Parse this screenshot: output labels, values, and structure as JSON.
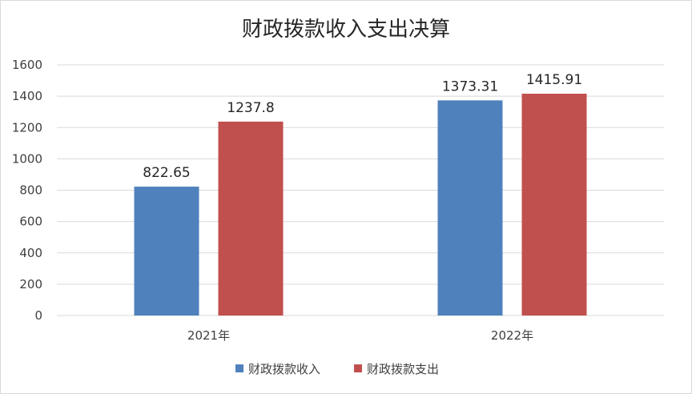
{
  "chart_data": {
    "type": "bar",
    "title": "财政拨款收入支出决算",
    "categories": [
      "2021年",
      "2022年"
    ],
    "series": [
      {
        "name": "财政拨款收入",
        "values": [
          822.65,
          1373.31
        ],
        "labels": [
          "822.65",
          "1373.31"
        ],
        "color": "#4f81bd"
      },
      {
        "name": "财政拨款支出",
        "values": [
          1237.8,
          1415.91
        ],
        "labels": [
          "1237.8",
          "1415.91"
        ],
        "color": "#c0504d"
      }
    ],
    "ylim": [
      0,
      1600
    ],
    "yticks": [
      0,
      200,
      400,
      600,
      800,
      1000,
      1200,
      1400,
      1600
    ],
    "ytick_labels": [
      "0",
      "200",
      "400",
      "600",
      "800",
      "1000",
      "1200",
      "1400",
      "1600"
    ],
    "grid": true,
    "gridline_color": "#d9d9d9",
    "legend_position": "bottom"
  }
}
